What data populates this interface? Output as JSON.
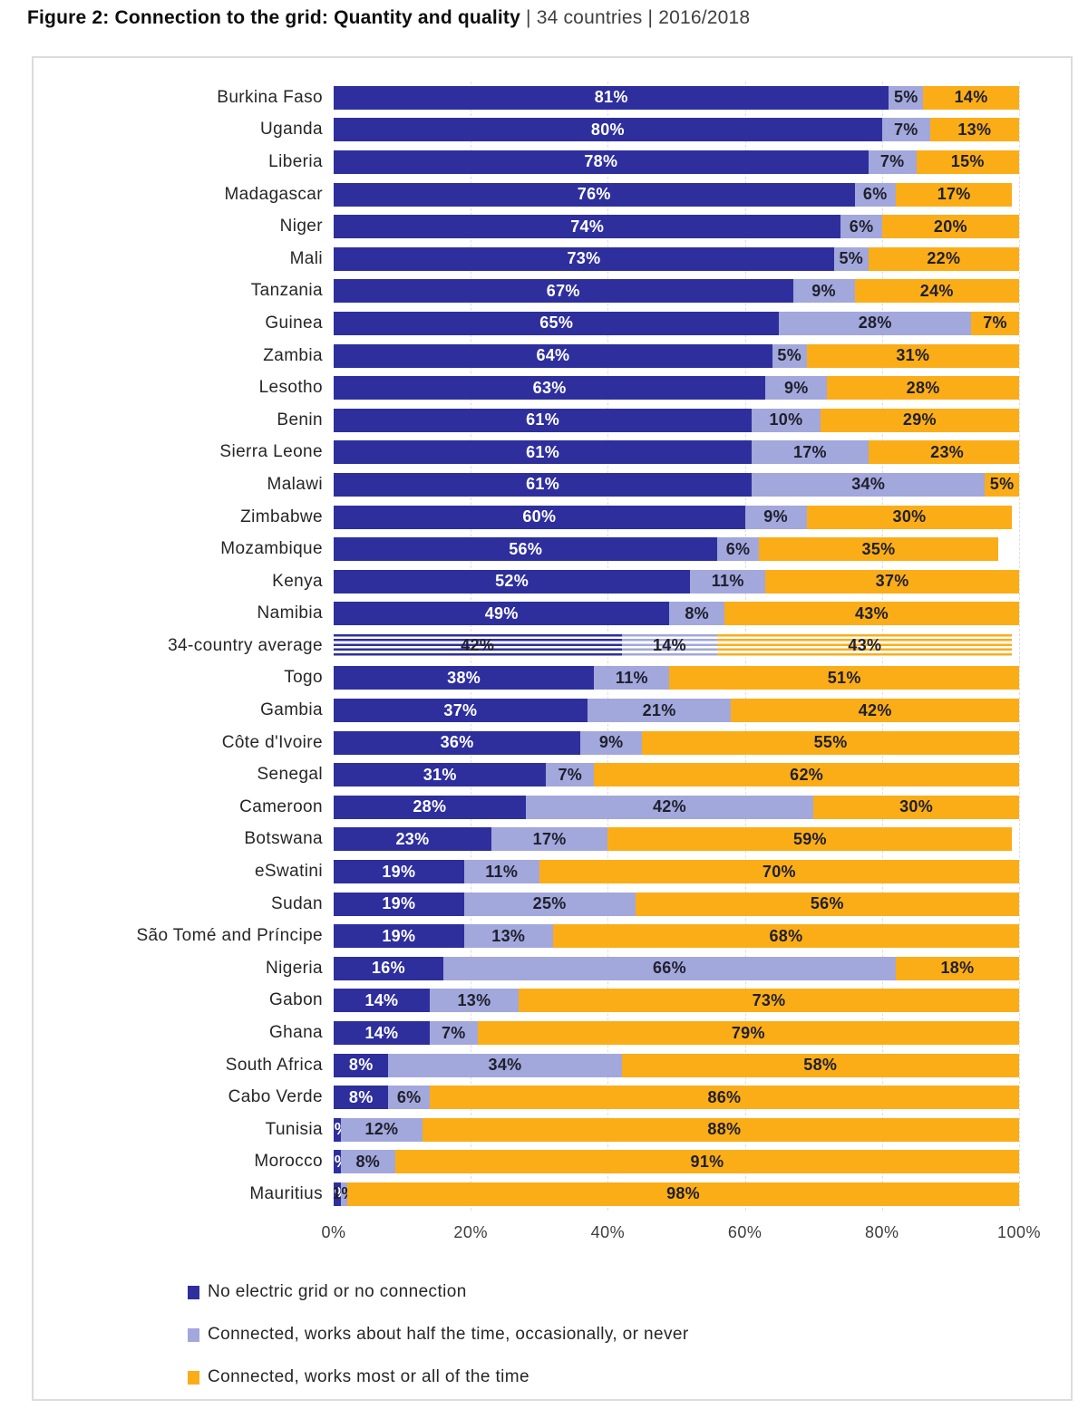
{
  "header": {
    "title_bold": "Figure 2: Connection to the grid: Quantity and quality",
    "title_rest": " | 34 countries | 2016/2018"
  },
  "chart_data": {
    "type": "bar",
    "stacked": true,
    "orientation": "horizontal",
    "title": "Figure 2: Connection to the grid: Quantity and quality | 34 countries | 2016/2018",
    "xlabel": "",
    "ylabel": "",
    "xlim": [
      0,
      100
    ],
    "x_ticks": [
      "0%",
      "20%",
      "40%",
      "60%",
      "80%",
      "100%"
    ],
    "grid": "vertical-dashed",
    "legend_position": "bottom-left",
    "average_row": "34-country average",
    "colors": {
      "label_light": "#ffffff",
      "label_dark": "#20202c",
      "grid": "#dedede",
      "border": "#dcdcdc"
    },
    "categories": [
      "Burkina Faso",
      "Uganda",
      "Liberia",
      "Madagascar",
      "Niger",
      "Mali",
      "Tanzania",
      "Guinea",
      "Zambia",
      "Lesotho",
      "Benin",
      "Sierra Leone",
      "Malawi",
      "Zimbabwe",
      "Mozambique",
      "Kenya",
      "Namibia",
      "34-country average",
      "Togo",
      "Gambia",
      "Côte d'Ivoire",
      "Senegal",
      "Cameroon",
      "Botswana",
      "eSwatini",
      "Sudan",
      "São Tomé and Príncipe",
      "Nigeria",
      "Gabon",
      "Ghana",
      "South Africa",
      "Cabo Verde",
      "Tunisia",
      "Morocco",
      "Mauritius"
    ],
    "series": [
      {
        "name": "No electric grid or no connection",
        "color": "#2e2f9d",
        "values": [
          81,
          80,
          78,
          76,
          74,
          73,
          67,
          65,
          64,
          63,
          61,
          61,
          61,
          60,
          56,
          52,
          49,
          42,
          38,
          37,
          36,
          31,
          28,
          23,
          19,
          19,
          19,
          16,
          14,
          14,
          8,
          8,
          1,
          1,
          1
        ]
      },
      {
        "name": "Connected, works about half the time, occasionally, or never",
        "color": "#a2a7dc",
        "values": [
          5,
          7,
          7,
          6,
          6,
          5,
          9,
          28,
          5,
          9,
          10,
          17,
          34,
          9,
          6,
          11,
          8,
          14,
          11,
          21,
          9,
          7,
          42,
          17,
          11,
          25,
          13,
          66,
          13,
          7,
          34,
          6,
          12,
          8,
          1
        ]
      },
      {
        "name": "Connected, works most or all of the time",
        "color": "#fbad18",
        "values": [
          14,
          13,
          15,
          17,
          20,
          22,
          24,
          7,
          31,
          28,
          29,
          23,
          5,
          30,
          35,
          37,
          43,
          43,
          51,
          42,
          55,
          62,
          30,
          59,
          70,
          56,
          68,
          18,
          73,
          79,
          58,
          86,
          88,
          91,
          98
        ]
      }
    ],
    "value_label_format": "{v}%"
  }
}
